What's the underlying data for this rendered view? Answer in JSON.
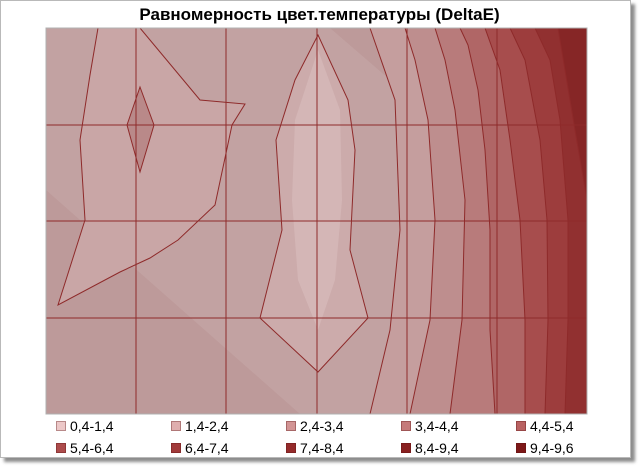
{
  "chart_data": {
    "type": "heatmap",
    "title": "Равномерность цвет.температуры (DeltaE)",
    "xlabel": "",
    "ylabel": "",
    "grid": true,
    "grid_columns": 6,
    "grid_rows": 4,
    "legend_position": "bottom",
    "legend": [
      {
        "label": "0,4-1,4",
        "color": "#ecc8c8"
      },
      {
        "label": "1,4-2,4",
        "color": "#dfaeae"
      },
      {
        "label": "2,4-3,4",
        "color": "#d29494"
      },
      {
        "label": "3,4-4,4",
        "color": "#c57a7a"
      },
      {
        "label": "4,4-5,4",
        "color": "#b96262"
      },
      {
        "label": "5,4-6,4",
        "color": "#ad4c4c"
      },
      {
        "label": "6,4-7,4",
        "color": "#a13a3a"
      },
      {
        "label": "7,4-8,4",
        "color": "#952b2b"
      },
      {
        "label": "8,4-9,4",
        "color": "#892020"
      },
      {
        "label": "9,4-9,6",
        "color": "#7d1818"
      }
    ],
    "levels": [
      {
        "range": "1,4-2,4",
        "zones": [
          "main-left-area"
        ]
      },
      {
        "range": "2,4-3,4",
        "zones": [
          "left-upper-patch",
          "center-vertical-band-outer"
        ]
      },
      {
        "range": "3,4-4,4",
        "zones": [
          "upper-left-lens",
          "center-vertical-band-inner",
          "right-band-1"
        ]
      },
      {
        "range": "4,4-5,4",
        "zones": [
          "right-band-2"
        ]
      },
      {
        "range": "5,4-6,4",
        "zones": [
          "right-band-3"
        ]
      },
      {
        "range": "6,4-7,4",
        "zones": [
          "right-band-4"
        ]
      },
      {
        "range": "7,4-8,4",
        "zones": [
          "right-band-5"
        ]
      },
      {
        "range": "8,4-9,4",
        "zones": [
          "right-band-6"
        ]
      },
      {
        "range": "9,4-9,6",
        "zones": [
          "top-right-corner"
        ]
      }
    ]
  }
}
